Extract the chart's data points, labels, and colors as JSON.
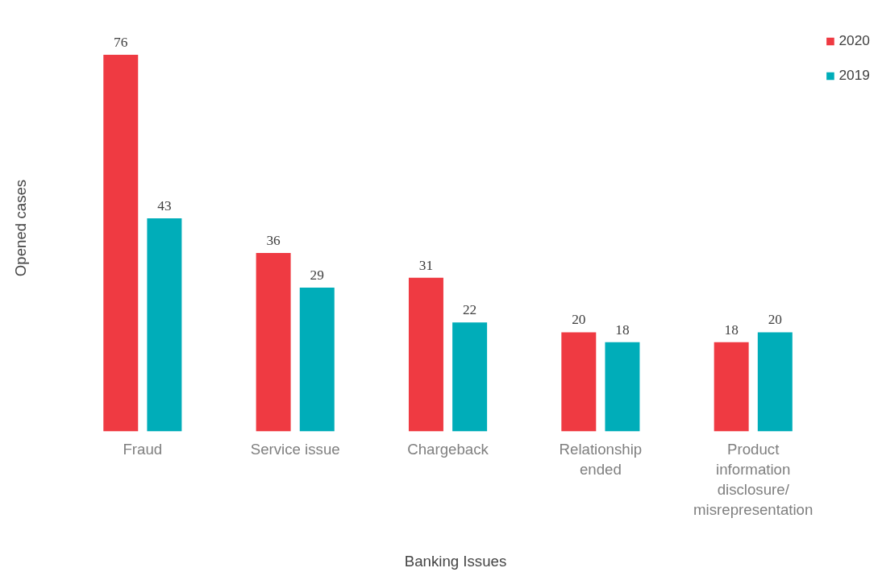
{
  "chart_data": {
    "type": "bar",
    "xlabel": "Banking Issues",
    "ylabel": "Opened cases",
    "categories": [
      "Fraud",
      "Service issue",
      "Chargeback",
      "Relationship ended",
      "Product information disclosure/ misrepresentation"
    ],
    "series": [
      {
        "name": "2020",
        "color": "#ef3a42",
        "values": [
          76,
          36,
          31,
          20,
          18
        ]
      },
      {
        "name": "2019",
        "color": "#00adb9",
        "values": [
          43,
          29,
          22,
          18,
          20
        ]
      }
    ],
    "data_labels": true,
    "legend": "top right",
    "grid": false
  }
}
